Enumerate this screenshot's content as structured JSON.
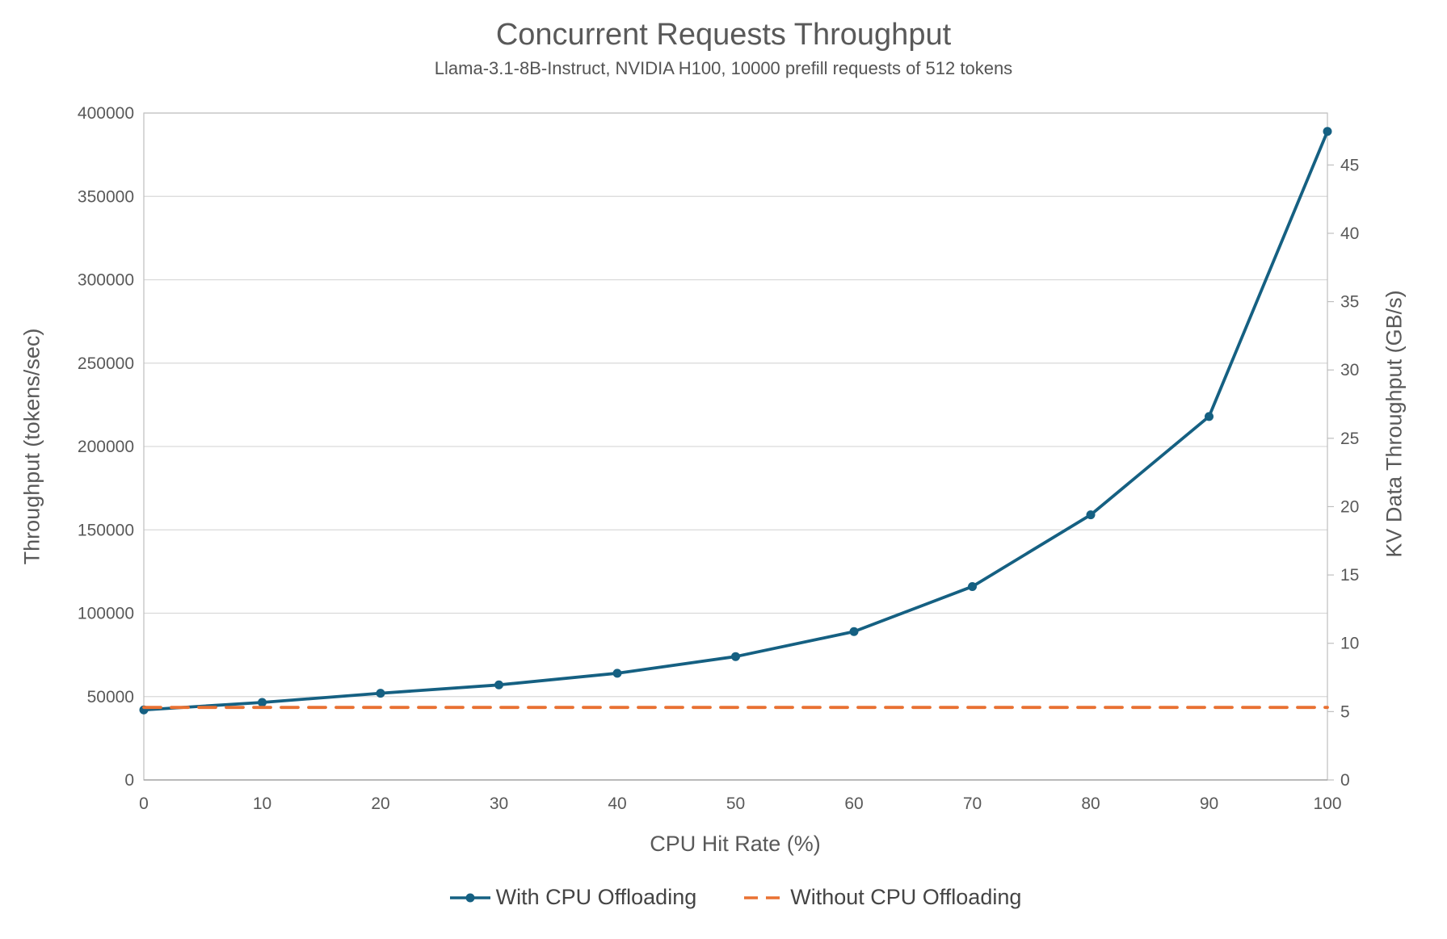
{
  "header": {
    "title": "Concurrent Requests Throughput",
    "subtitle": "Llama-3.1-8B-Instruct, NVIDIA H100, 10000 prefill requests of 512 tokens"
  },
  "chart_data": {
    "type": "line",
    "title": "Concurrent Requests Throughput",
    "subtitle": "Llama-3.1-8B-Instruct, NVIDIA H100, 10000 prefill requests of 512 tokens",
    "xlabel": "CPU Hit Rate (%)",
    "ylabel_left": "Throughput (tokens/sec)",
    "ylabel_right": "KV Data Throughput (GB/s)",
    "x": [
      0,
      10,
      20,
      30,
      40,
      50,
      60,
      70,
      80,
      90,
      100
    ],
    "x_tick_labels": [
      "0",
      "10",
      "20",
      "30",
      "40",
      "50",
      "60",
      "70",
      "80",
      "90",
      "100"
    ],
    "left_axis": {
      "min": 0,
      "max": 400000,
      "tick_step": 50000,
      "tick_labels": [
        "0",
        "50000",
        "100000",
        "150000",
        "200000",
        "250000",
        "300000",
        "350000",
        "400000"
      ]
    },
    "right_axis": {
      "min": 0,
      "max": 48.8,
      "tick_step": 5,
      "tick_labels": [
        "0",
        "5",
        "10",
        "15",
        "20",
        "25",
        "30",
        "35",
        "40",
        "45"
      ]
    },
    "grid": "horizontal",
    "legend_position": "bottom",
    "series": [
      {
        "name": "With CPU Offloading",
        "axis": "left",
        "color": "#156082",
        "line_style": "solid",
        "marker": "circle",
        "values": [
          42000,
          46500,
          52000,
          57000,
          64000,
          74000,
          89000,
          116000,
          159000,
          218000,
          389000
        ],
        "values_right_axis_gbps": [
          5.1,
          5.7,
          6.3,
          7.0,
          7.8,
          9.0,
          10.9,
          14.2,
          19.4,
          26.6,
          47.5
        ]
      },
      {
        "name": "Without CPU Offloading",
        "axis": "left",
        "color": "#E97132",
        "line_style": "dashed",
        "marker": "none",
        "values": [
          43500,
          43500,
          43500,
          43500,
          43500,
          43500,
          43500,
          43500,
          43500,
          43500,
          43500
        ],
        "values_right_axis_gbps": [
          5.3,
          5.3,
          5.3,
          5.3,
          5.3,
          5.3,
          5.3,
          5.3,
          5.3,
          5.3,
          5.3
        ]
      }
    ]
  },
  "legend": {
    "items": [
      {
        "label": "With CPU Offloading",
        "color": "#156082",
        "style": "solid-with-marker"
      },
      {
        "label": "Without CPU Offloading",
        "color": "#E97132",
        "style": "dashed"
      }
    ]
  },
  "colors": {
    "series_with_offloading": "#156082",
    "series_without_offloading": "#E97132",
    "gridline": "#D9D9D9",
    "axis_border": "#BFBFBF",
    "axis_bottom": "#A6A6A6",
    "tick_text": "#595959",
    "title_text": "#595959",
    "legend_text": "#444444"
  }
}
